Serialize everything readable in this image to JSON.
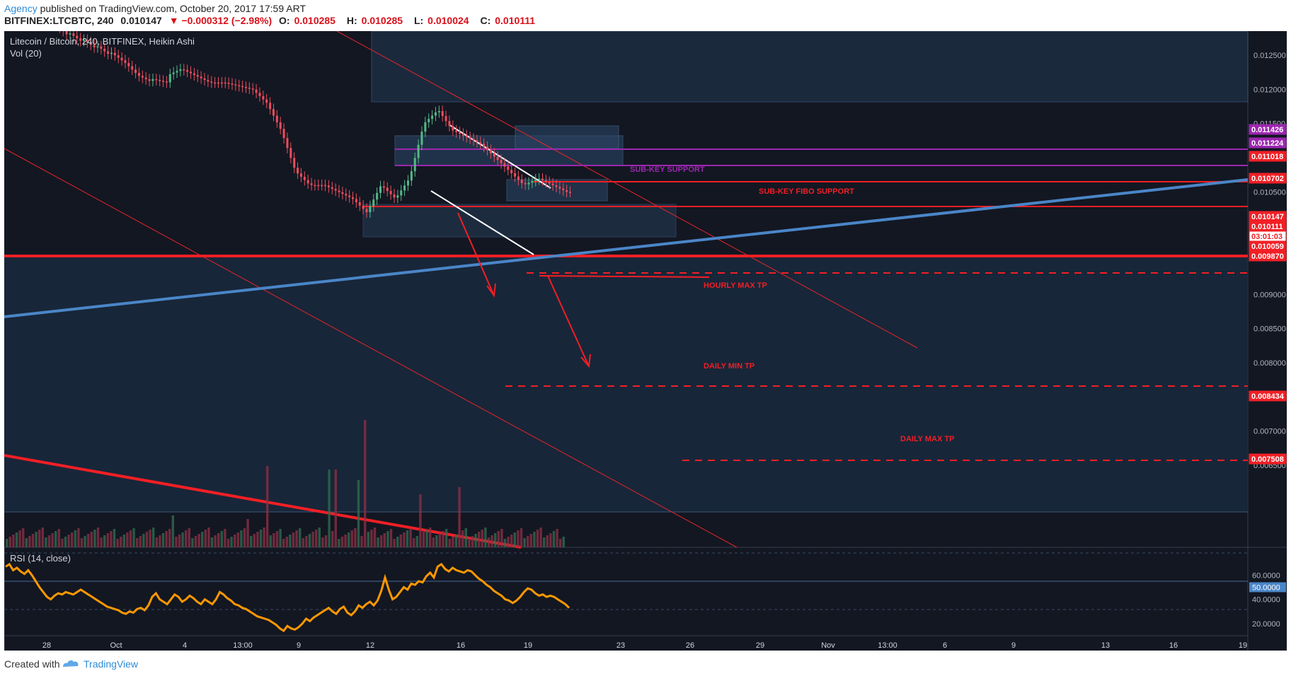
{
  "header": {
    "author": "Agency",
    "published_text": "published on TradingView.com, October 20, 2017 17:59 ART",
    "symbol": "BITFINEX:LTCBTC, 240",
    "last": "0.010147",
    "change": "▼ −0.000312 (−2.98%)",
    "o_label": "O:",
    "o_value": "0.010285",
    "h_label": "H:",
    "h_value": "0.010285",
    "l_label": "L:",
    "l_value": "0.010024",
    "c_label": "C:",
    "c_value": "0.010111"
  },
  "footer": {
    "created_label": "Created with",
    "brand": "TradingView"
  },
  "colors": {
    "bg": "#131722",
    "up": "#53b987",
    "down": "#eb4d5c",
    "red_line": "#f11f25",
    "purple": "#9c27b0",
    "trend_blue": "#4a86c8",
    "rsi": "#ff9800",
    "zone_fill": "#1e2f47"
  },
  "chart_data": {
    "type": "candlestick",
    "title": "Litecoin / Bitcoin, 240, BITFINEX, Heikin Ashi",
    "volume_label": "Vol (20)",
    "rsi_label": "RSI (14, close)",
    "ylim": [
      0.0064,
      0.0129
    ],
    "y_ticks": [
      "0.012500",
      "0.012000",
      "0.011500",
      "0.010500",
      "0.009000",
      "0.008500",
      "0.008000",
      "0.007000",
      "0.006500"
    ],
    "x_ticks": [
      "28",
      "Oct",
      "4",
      "13:00",
      "9",
      "12",
      "16",
      "19",
      "23",
      "26",
      "29",
      "Nov",
      "13:00",
      "6",
      "9",
      "13",
      "16",
      "19"
    ],
    "price_labels": [
      {
        "text": "0.011426",
        "value": 0.011426,
        "color": "#9c27b0"
      },
      {
        "text": "0.011224",
        "value": 0.011224,
        "color": "#9c27b0"
      },
      {
        "text": "0.011018",
        "value": 0.011018,
        "color": "#f11f25"
      },
      {
        "text": "0.010702",
        "value": 0.010702,
        "color": "#f11f25"
      },
      {
        "text": "0.010147",
        "value": 0.010147,
        "color": "#f11f25"
      },
      {
        "text": "0.010111",
        "value": 0.010111,
        "color": "#f11f25"
      },
      {
        "text": "03:01:03",
        "value": 0.01,
        "color": "#f11f25"
      },
      {
        "text": "0.010059",
        "value": 0.010059,
        "color": "#f11f25"
      },
      {
        "text": "0.009870",
        "value": 0.00987,
        "color": "#f11f25"
      },
      {
        "text": "0.008434",
        "value": 0.008434,
        "color": "#f11f25"
      },
      {
        "text": "0.007508",
        "value": 0.007508,
        "color": "#f11f25"
      }
    ],
    "annotations": [
      {
        "text": "SUB-KEY SUPPORT",
        "value": 0.011224,
        "color": "#9c27b0"
      },
      {
        "text": "SUB-KEY FIBO SUPPORT",
        "value": 0.011018,
        "color": "#f11f25"
      },
      {
        "text": "HOURLY MAX TP",
        "value": 0.01,
        "color": "#f11f25"
      },
      {
        "text": "DAILY MIN TP",
        "value": 0.0086,
        "color": "#f11f25"
      },
      {
        "text": "DAILY MAX TP",
        "value": 0.0077,
        "color": "#f11f25"
      }
    ],
    "rsi_ticks": [
      "60.0000",
      "50.0000",
      "40.0000",
      "20.0000"
    ],
    "rsi_range": [
      10,
      80
    ],
    "rsi_values": [
      67,
      69,
      64,
      66,
      63,
      61,
      64,
      60,
      55,
      50,
      46,
      42,
      40,
      43,
      45,
      44,
      46,
      45,
      44,
      46,
      48,
      46,
      44,
      42,
      40,
      38,
      36,
      34,
      33,
      32,
      31,
      29,
      28,
      30,
      29,
      32,
      33,
      31,
      35,
      42,
      45,
      40,
      38,
      36,
      40,
      44,
      42,
      38,
      40,
      43,
      41,
      38,
      36,
      40,
      38,
      36,
      40,
      46,
      44,
      41,
      39,
      36,
      35,
      33,
      32,
      30,
      28,
      26,
      25,
      24,
      23,
      21,
      19,
      16,
      14,
      18,
      16,
      15,
      17,
      20,
      24,
      22,
      25,
      27,
      29,
      31,
      33,
      30,
      28,
      32,
      34,
      29,
      27,
      30,
      35,
      33,
      36,
      38,
      35,
      39,
      47,
      58,
      48,
      40,
      42,
      46,
      50,
      48,
      53,
      52,
      55,
      54,
      59,
      62,
      58,
      67,
      69,
      65,
      63,
      66,
      64,
      63,
      62,
      64,
      63,
      60,
      57,
      55,
      52,
      50,
      47,
      45,
      43,
      40,
      39,
      37,
      39,
      42,
      46,
      49,
      48,
      45,
      43,
      44,
      42,
      43,
      42,
      40,
      38,
      36,
      33
    ]
  }
}
